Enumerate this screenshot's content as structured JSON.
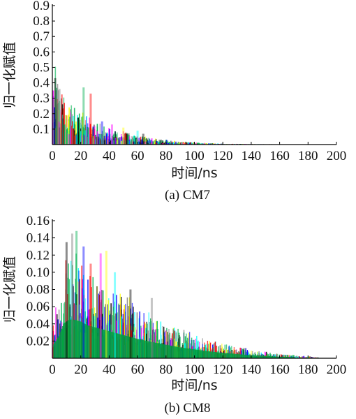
{
  "chart_data": [
    {
      "type": "bar",
      "caption": "(a)  CM7",
      "xlabel": "时间/ns",
      "ylabel": "归一化赋值",
      "xlim": [
        0,
        200
      ],
      "ylim": [
        0,
        0.9
      ],
      "xticks": [
        "0",
        "20",
        "40",
        "60",
        "80",
        "100",
        "120",
        "140",
        "160",
        "180",
        "200"
      ],
      "yticks": [
        "0.1",
        "0.2",
        "0.3",
        "0.4",
        "0.5",
        "0.6",
        "0.7",
        "0.8",
        "0.9"
      ],
      "series_colors": [
        "#00b050",
        "#ff0000",
        "#0000ff",
        "#ff00ff",
        "#ffff00",
        "#00ffff",
        "#000000",
        "#808080"
      ],
      "envelope": {
        "x": [
          0,
          2,
          4,
          6,
          10,
          15,
          20,
          25,
          30,
          35,
          40,
          50,
          60,
          70,
          80,
          90,
          100,
          110,
          120,
          140,
          160,
          180
        ],
        "y": [
          0.43,
          0.4,
          0.36,
          0.3,
          0.24,
          0.2,
          0.18,
          0.15,
          0.12,
          0.1,
          0.09,
          0.07,
          0.05,
          0.035,
          0.025,
          0.018,
          0.012,
          0.008,
          0.005,
          0.003,
          0.002,
          0.001
        ]
      },
      "peaks": [
        {
          "x": 2,
          "y": 0.43
        },
        {
          "x": 5,
          "y": 0.36
        },
        {
          "x": 22,
          "y": 0.37
        },
        {
          "x": 27,
          "y": 0.33
        },
        {
          "x": 35,
          "y": 0.15
        },
        {
          "x": 42,
          "y": 0.13
        },
        {
          "x": 50,
          "y": 0.11
        },
        {
          "x": 60,
          "y": 0.09
        },
        {
          "x": 64,
          "y": 0.07
        }
      ]
    },
    {
      "type": "bar",
      "caption": "(b)  CM8",
      "xlabel": "时间/ns",
      "ylabel": "归一化赋值",
      "xlim": [
        0,
        200
      ],
      "ylim": [
        0,
        0.16
      ],
      "xticks": [
        "0",
        "20",
        "40",
        "60",
        "80",
        "100",
        "120",
        "140",
        "160",
        "180",
        "200"
      ],
      "yticks": [
        "0.02",
        "0.04",
        "0.06",
        "0.08",
        "0.10",
        "0.12",
        "0.14",
        "0.16"
      ],
      "series_colors": [
        "#00b050",
        "#0000ff",
        "#ff0000",
        "#ff00ff",
        "#ffff00",
        "#00ffff",
        "#000000",
        "#808080"
      ],
      "envelope": {
        "x": [
          0,
          5,
          8,
          12,
          15,
          20,
          25,
          30,
          40,
          50,
          60,
          70,
          80,
          90,
          100,
          110,
          120,
          130,
          140,
          150,
          160,
          170,
          180,
          188
        ],
        "y": [
          0.03,
          0.06,
          0.09,
          0.1,
          0.1,
          0.095,
          0.085,
          0.08,
          0.07,
          0.06,
          0.05,
          0.042,
          0.035,
          0.028,
          0.023,
          0.018,
          0.014,
          0.011,
          0.008,
          0.006,
          0.004,
          0.003,
          0.002,
          0.001
        ]
      },
      "peaks": [
        {
          "x": 10,
          "y": 0.135
        },
        {
          "x": 14,
          "y": 0.145
        },
        {
          "x": 17,
          "y": 0.148
        },
        {
          "x": 22,
          "y": 0.13
        },
        {
          "x": 27,
          "y": 0.11
        },
        {
          "x": 34,
          "y": 0.122
        },
        {
          "x": 38,
          "y": 0.125
        },
        {
          "x": 44,
          "y": 0.1
        },
        {
          "x": 55,
          "y": 0.08
        },
        {
          "x": 70,
          "y": 0.07
        }
      ]
    }
  ]
}
